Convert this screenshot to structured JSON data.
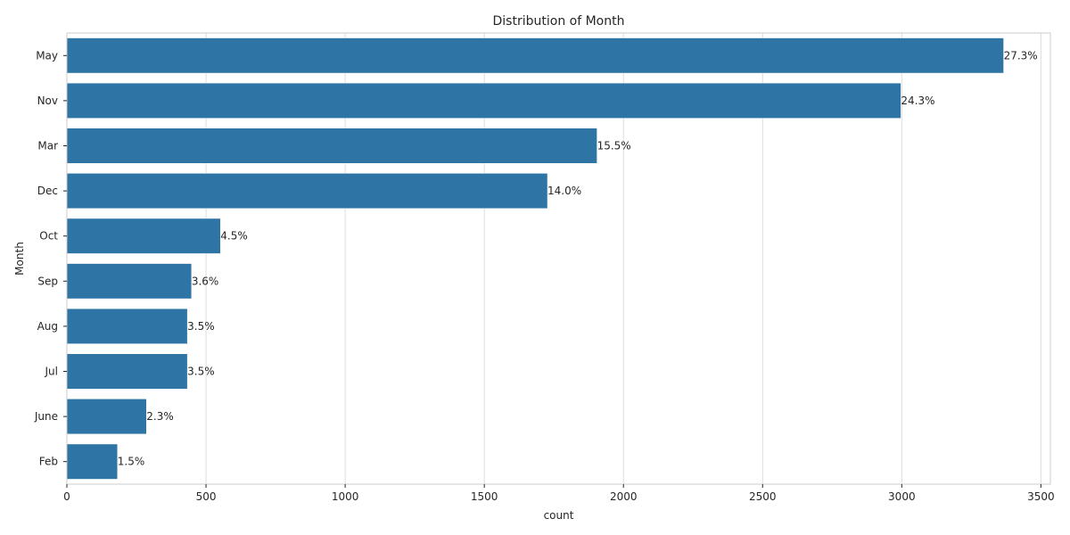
{
  "chart_data": {
    "type": "bar",
    "orientation": "horizontal",
    "title": "Distribution of Month",
    "xlabel": "count",
    "ylabel": "Month",
    "categories": [
      "May",
      "Nov",
      "Mar",
      "Dec",
      "Oct",
      "Sep",
      "Aug",
      "Jul",
      "June",
      "Feb"
    ],
    "values": [
      3366,
      2997,
      1905,
      1727,
      552,
      448,
      433,
      433,
      286,
      182
    ],
    "data_labels": [
      "27.3%",
      "24.3%",
      "15.5%",
      "14.0%",
      "4.5%",
      "3.6%",
      "3.5%",
      "3.5%",
      "2.3%",
      "1.5%"
    ],
    "xticks": [
      0,
      500,
      1000,
      1500,
      2000,
      2500,
      3000,
      3500
    ],
    "xlim": [
      0,
      3534
    ],
    "grid": "vertical",
    "bar_color": "#2e74a4"
  }
}
